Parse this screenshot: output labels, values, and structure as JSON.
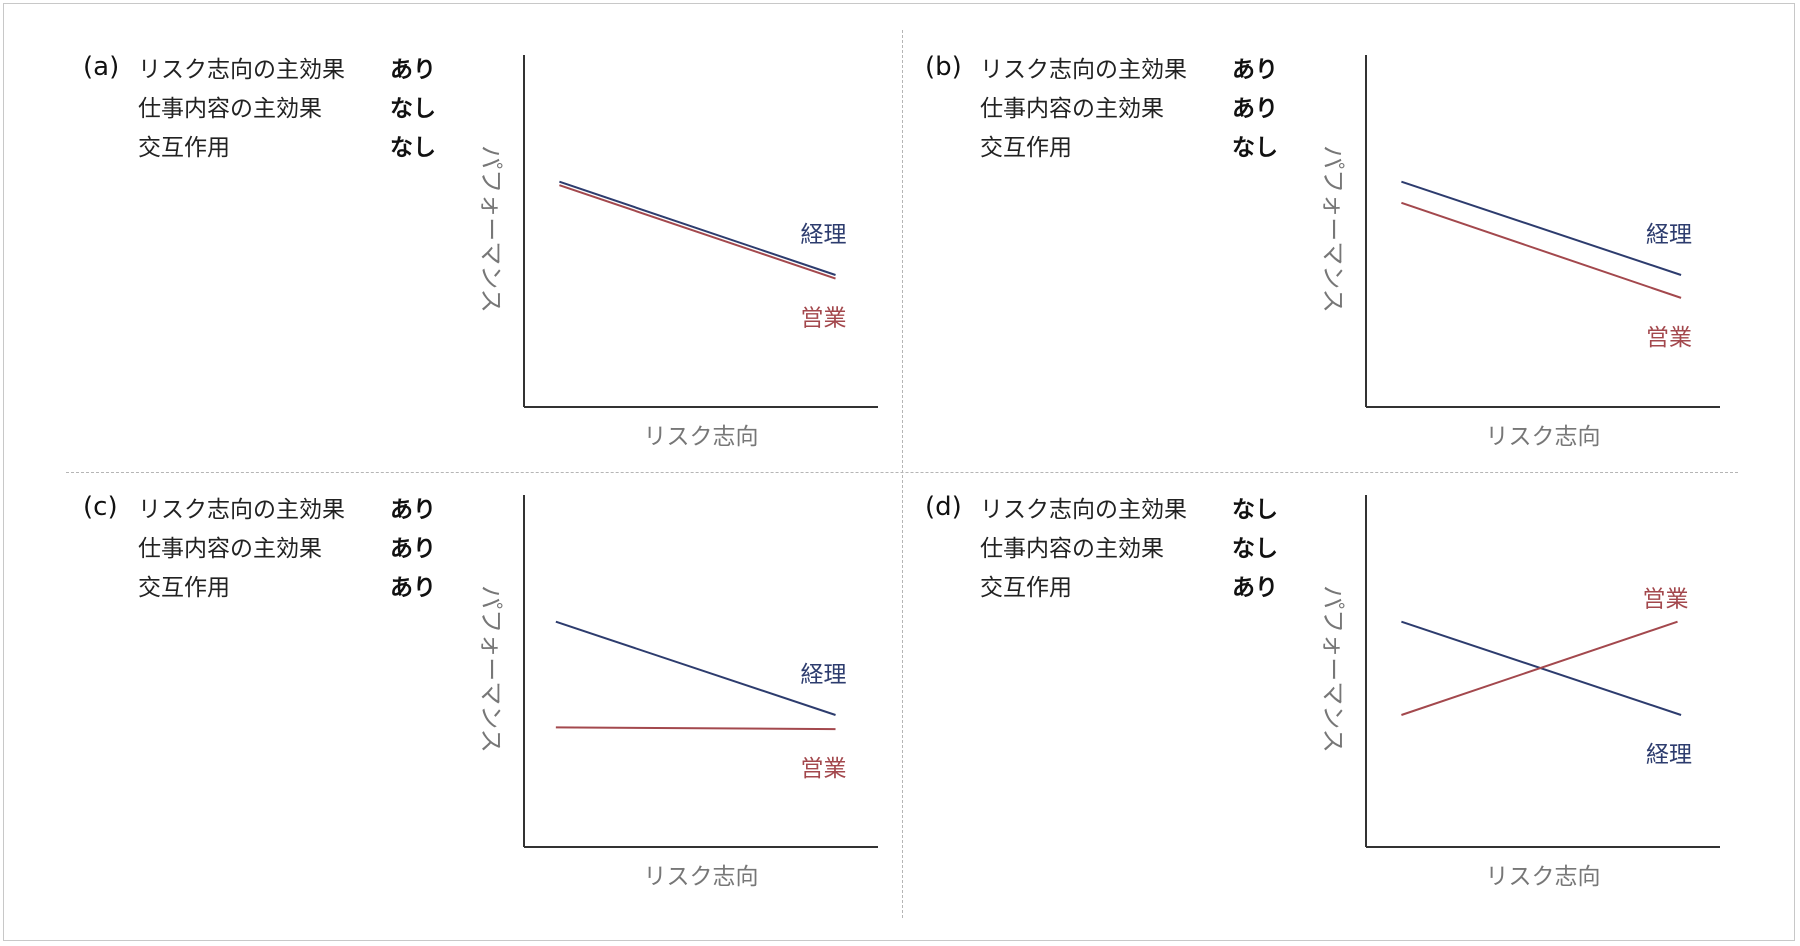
{
  "colors": {
    "keiri": "#2d3c6e",
    "eigyo": "#a3484d",
    "axis": "#333333",
    "axis_label": "#777777",
    "divider": "#b5b5b5"
  },
  "chart_data": [
    {
      "type": "line",
      "panel_label": "(a)",
      "effects": [
        {
          "name": "リスク志向の主効果",
          "value": "あり"
        },
        {
          "name": "仕事内容の主効果",
          "value": "なし"
        },
        {
          "name": "交互作用",
          "value": "なし"
        }
      ],
      "xlabel": "リスク志向",
      "ylabel": "パフォーマンス",
      "xlim": [
        0,
        1
      ],
      "ylim": [
        0,
        1
      ],
      "series": [
        {
          "name": "経理",
          "color": "#2d3c6e",
          "x": [
            0.1,
            0.88
          ],
          "y": [
            0.64,
            0.375
          ]
        },
        {
          "name": "営業",
          "color": "#a3484d",
          "x": [
            0.1,
            0.88
          ],
          "y": [
            0.63,
            0.365
          ]
        }
      ]
    },
    {
      "type": "line",
      "panel_label": "(b)",
      "effects": [
        {
          "name": "リスク志向の主効果",
          "value": "あり"
        },
        {
          "name": "仕事内容の主効果",
          "value": "あり"
        },
        {
          "name": "交互作用",
          "value": "なし"
        }
      ],
      "xlabel": "リスク志向",
      "ylabel": "パフォーマンス",
      "xlim": [
        0,
        1
      ],
      "ylim": [
        0,
        1
      ],
      "series": [
        {
          "name": "経理",
          "color": "#2d3c6e",
          "x": [
            0.1,
            0.89
          ],
          "y": [
            0.64,
            0.375
          ]
        },
        {
          "name": "営業",
          "color": "#a3484d",
          "x": [
            0.1,
            0.89
          ],
          "y": [
            0.58,
            0.31
          ]
        }
      ]
    },
    {
      "type": "line",
      "panel_label": "(c)",
      "effects": [
        {
          "name": "リスク志向の主効果",
          "value": "あり"
        },
        {
          "name": "仕事内容の主効果",
          "value": "あり"
        },
        {
          "name": "交互作用",
          "value": "あり"
        }
      ],
      "xlabel": "リスク志向",
      "ylabel": "パフォーマンス",
      "xlim": [
        0,
        1
      ],
      "ylim": [
        0,
        1
      ],
      "series": [
        {
          "name": "経理",
          "color": "#2d3c6e",
          "x": [
            0.09,
            0.88
          ],
          "y": [
            0.64,
            0.375
          ]
        },
        {
          "name": "営業",
          "color": "#a3484d",
          "x": [
            0.09,
            0.88
          ],
          "y": [
            0.34,
            0.335
          ]
        }
      ]
    },
    {
      "type": "line",
      "panel_label": "(d)",
      "effects": [
        {
          "name": "リスク志向の主効果",
          "value": "なし"
        },
        {
          "name": "仕事内容の主効果",
          "value": "なし"
        },
        {
          "name": "交互作用",
          "value": "あり"
        }
      ],
      "xlabel": "リスク志向",
      "ylabel": "パフォーマンス",
      "xlim": [
        0,
        1
      ],
      "ylim": [
        0,
        1
      ],
      "series": [
        {
          "name": "経理",
          "color": "#2d3c6e",
          "x": [
            0.1,
            0.89
          ],
          "y": [
            0.64,
            0.375
          ]
        },
        {
          "name": "営業",
          "color": "#a3484d",
          "x": [
            0.1,
            0.88
          ],
          "y": [
            0.375,
            0.64
          ]
        }
      ]
    }
  ]
}
